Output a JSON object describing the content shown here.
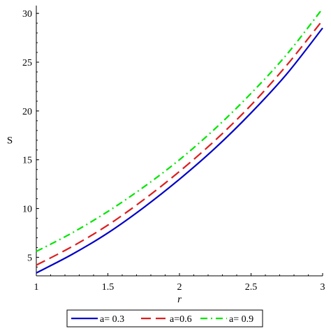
{
  "chart_data": {
    "type": "line",
    "xlabel": "r",
    "ylabel": "S",
    "xlim": [
      1,
      3
    ],
    "ylim": [
      3.1,
      30.8
    ],
    "x_ticks": [
      1,
      1.5,
      2,
      2.5,
      3
    ],
    "x_tick_labels": [
      "1",
      "1.5",
      "2",
      "2.5",
      "3"
    ],
    "y_ticks": [
      5,
      10,
      15,
      20,
      25,
      30
    ],
    "y_tick_labels": [
      "5",
      "10",
      "15",
      "20",
      "25",
      "30"
    ],
    "grid": false,
    "legend_position": "bottom",
    "x": [
      1.0,
      1.25,
      1.5,
      1.75,
      2.0,
      2.25,
      2.5,
      2.75,
      3.0
    ],
    "series": [
      {
        "name": "a= 0.3",
        "color": "#0000C8",
        "style": "solid",
        "values": [
          3.4,
          5.3,
          7.5,
          10.1,
          13.0,
          16.2,
          19.8,
          23.8,
          28.5
        ]
      },
      {
        "name": "a=0.6",
        "color": "#DC1E1E",
        "style": "dash",
        "values": [
          4.2,
          6.1,
          8.3,
          10.9,
          13.8,
          17.0,
          20.6,
          24.7,
          29.3
        ]
      },
      {
        "name": "a= 0.9",
        "color": "#00E600",
        "style": "dashdot",
        "values": [
          5.6,
          7.5,
          9.7,
          12.2,
          15.0,
          18.2,
          21.8,
          25.8,
          30.5
        ]
      }
    ]
  }
}
